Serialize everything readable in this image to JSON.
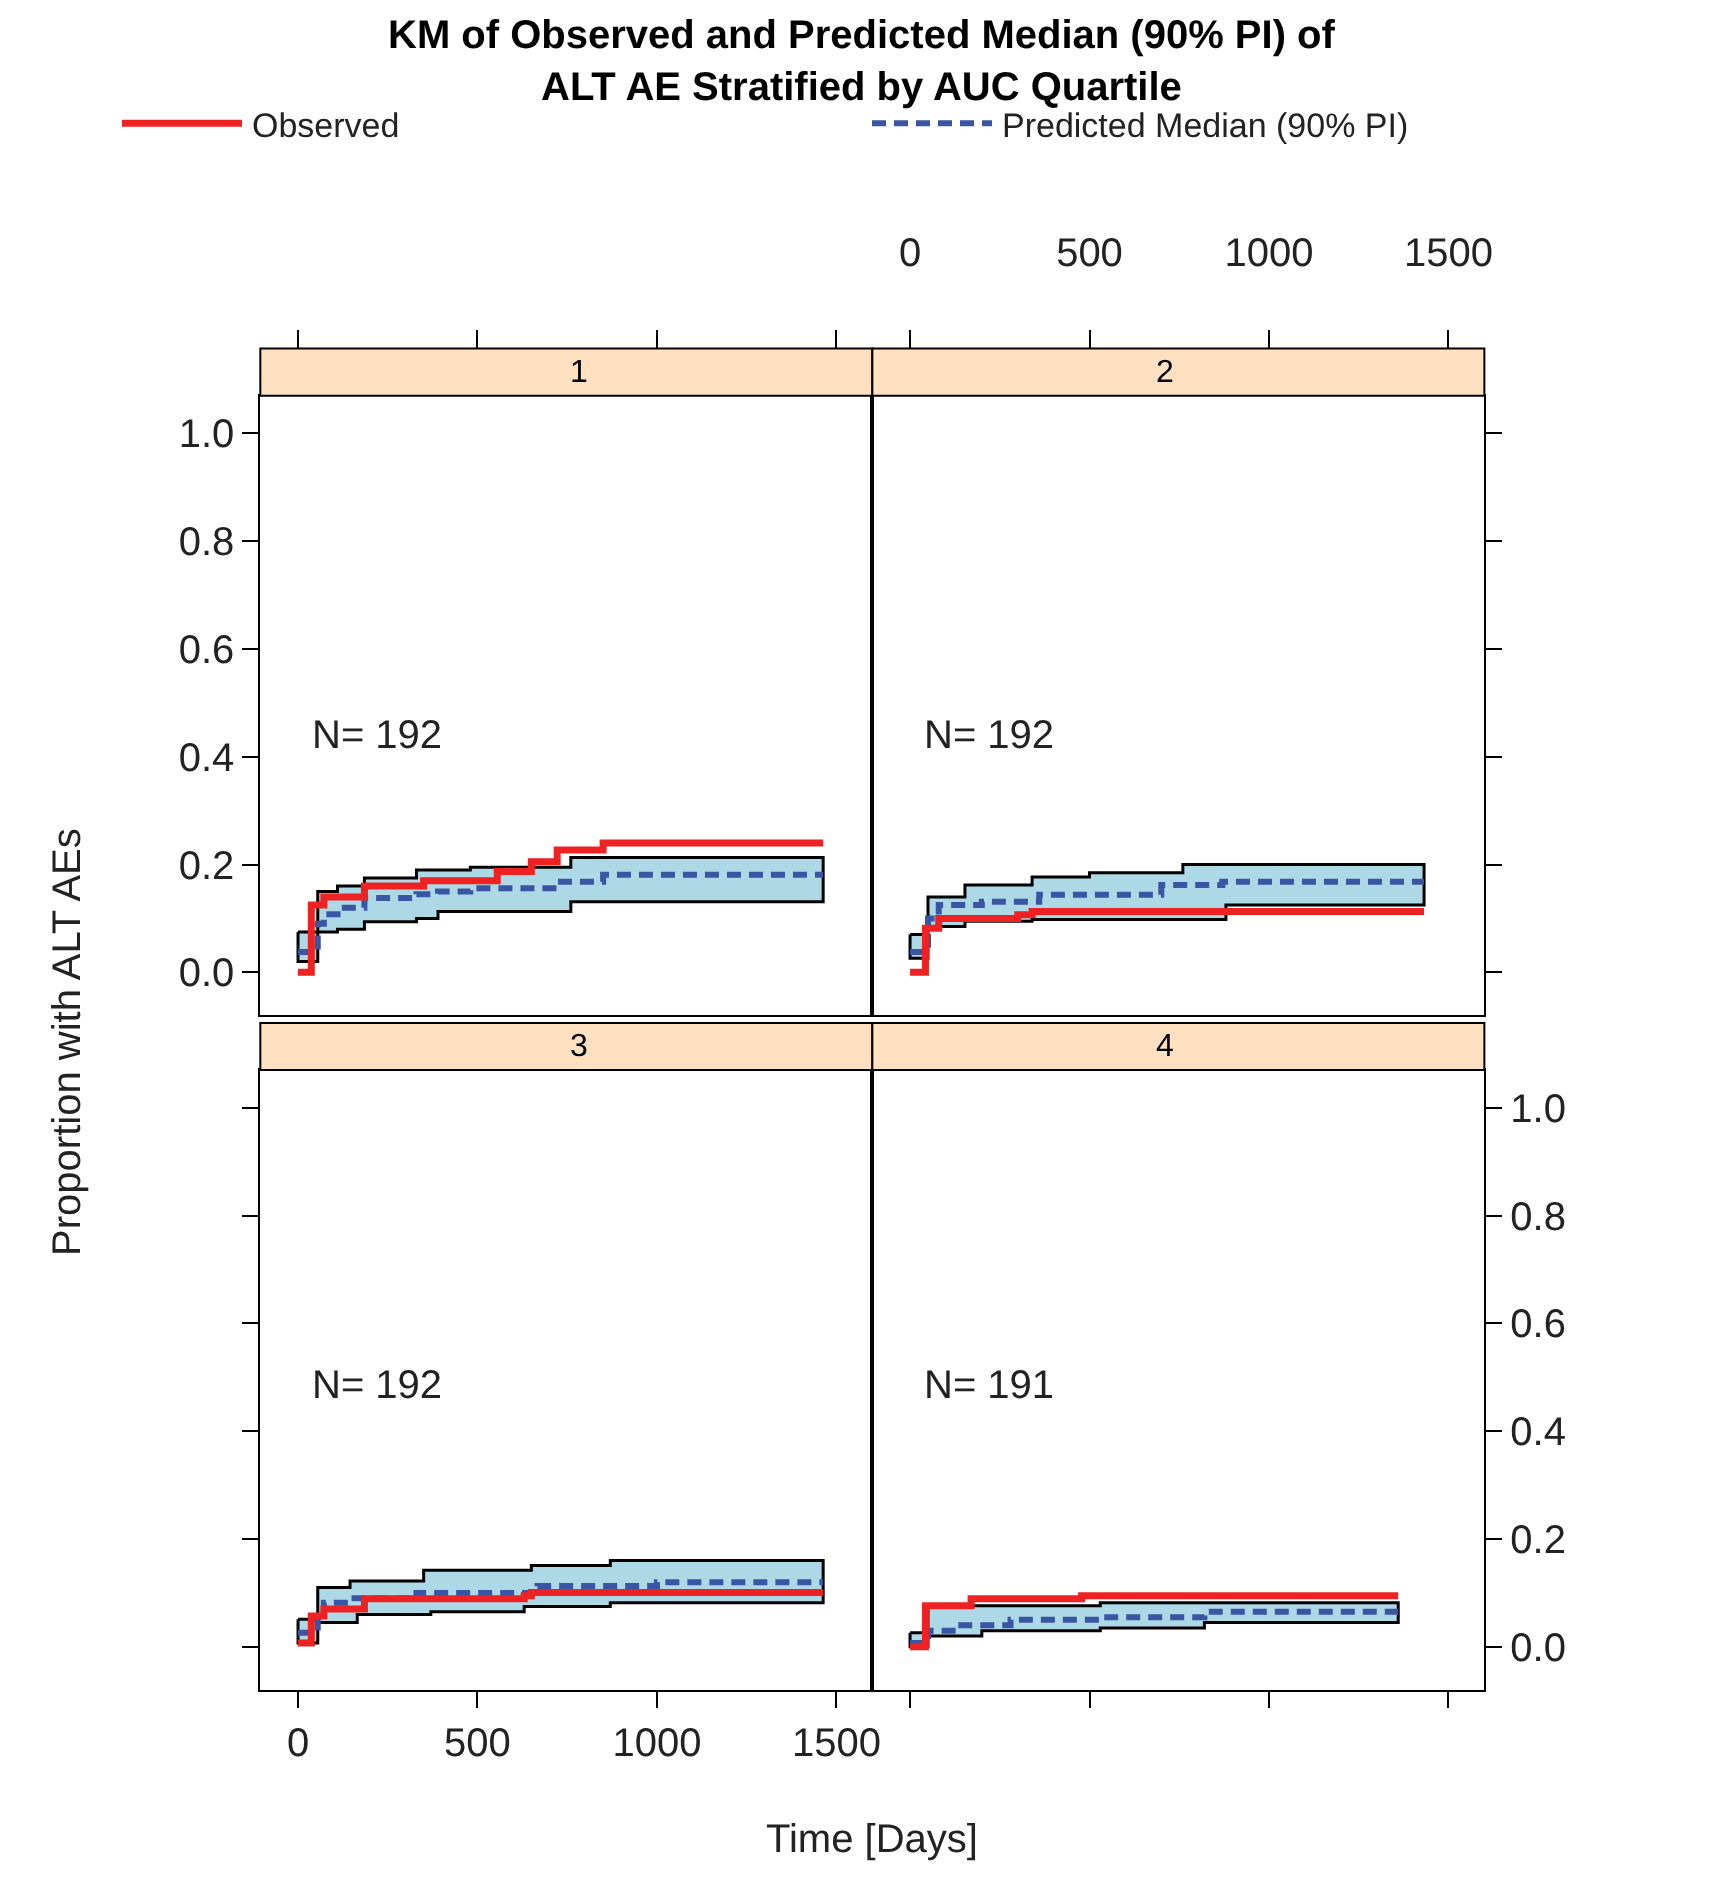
{
  "chart_data": [
    {
      "type": "step",
      "title": "KM of Observed and Predicted Median (90% PI) of\nALT AE Stratified by AUC Quartile",
      "subtitle": "1",
      "ylabel": "Proportion with ALT AEs",
      "legend": "top",
      "tick_labels": "y",
      "annotations": [
        "N= 192"
      ],
      "xlim": [
        -105,
        1600
      ],
      "xticks": [
        {
          "value": 0,
          "label": null
        },
        {
          "value": 500,
          "label": null
        },
        {
          "value": 1000,
          "label": null
        },
        {
          "value": 1500,
          "label": null
        }
      ],
      "ylim": [
        -0.08,
        1.07
      ],
      "yticks": [
        {
          "value": 0,
          "label": "0.0"
        },
        {
          "value": 0.2,
          "label": "0.2"
        },
        {
          "value": 0.4,
          "label": "0.4"
        },
        {
          "value": 0.6,
          "label": "0.6"
        },
        {
          "value": 0.8,
          "label": "0.8"
        },
        {
          "value": 1.0,
          "label": "1.0"
        }
      ],
      "series": [
        {
          "name": "Observed",
          "color": "#ee2222",
          "x": [
            0,
            37,
            72,
            185,
            350,
            555,
            650,
            722,
            850,
            1463
          ],
          "values": [
            0,
            0.125,
            0.14,
            0.16,
            0.17,
            0.187,
            0.205,
            0.227,
            0.24,
            0.24
          ]
        },
        {
          "name": "Predicted Median (90% PI)",
          "color": "#3a55a4",
          "line_style": "dashed",
          "x": [
            0,
            55,
            72,
            110,
            185,
            330,
            390,
            480,
            722,
            760,
            850,
            1463
          ],
          "values": [
            0.038,
            0.09,
            0.108,
            0.12,
            0.138,
            0.145,
            0.15,
            0.156,
            0.168,
            0.168,
            0.181,
            0.181
          ],
          "lower": [
            0.02,
            0.075,
            0.075,
            0.08,
            0.094,
            0.1,
            0.113,
            0.113,
            0.113,
            0.131,
            0.131,
            0.131
          ],
          "upper": [
            0.075,
            0.15,
            0.15,
            0.16,
            0.175,
            0.19,
            0.19,
            0.195,
            0.195,
            0.213,
            0.213,
            0.213
          ]
        }
      ]
    },
    {
      "type": "step",
      "subtitle": "2",
      "tick_labels": "x",
      "annotations": [
        "N= 192"
      ],
      "xlim": [
        -105,
        1600
      ],
      "xticks": [
        0,
        500,
        1000,
        1500
      ],
      "ylim": [
        -0.08,
        1.07
      ],
      "yticks": [
        {
          "value": 0,
          "label": null
        },
        {
          "value": 0.2,
          "label": null
        },
        {
          "value": 0.4,
          "label": null
        },
        {
          "value": 0.6,
          "label": null
        },
        {
          "value": 0.8,
          "label": null
        },
        {
          "value": 1.0,
          "label": null
        }
      ],
      "series": [
        {
          "color": "#ee2222",
          "x": [
            0,
            43,
            80,
            300,
            340,
            1432
          ],
          "values": [
            0,
            0.082,
            0.1,
            0.107,
            0.113,
            0.113
          ]
        },
        {
          "color": "#3a55a4",
          "line_style": "dashed",
          "x": [
            0,
            50,
            80,
            153,
            200,
            340,
            360,
            500,
            700,
            760,
            870,
            880,
            1432
          ],
          "values": [
            0.038,
            0.1,
            0.125,
            0.125,
            0.131,
            0.131,
            0.144,
            0.144,
            0.162,
            0.162,
            0.168,
            0.168,
            0.168
          ],
          "lower": [
            0.026,
            0.085,
            0.085,
            0.095,
            0.095,
            0.098,
            0.098,
            0.098,
            0.098,
            0.098,
            0.098,
            0.125,
            0.125
          ],
          "upper": [
            0.07,
            0.14,
            0.14,
            0.162,
            0.162,
            0.177,
            0.177,
            0.185,
            0.185,
            0.2,
            0.2,
            0.2,
            0.2
          ]
        }
      ]
    },
    {
      "type": "step",
      "subtitle": "3",
      "xlabel": "Time [Days]",
      "tick_labels": "x",
      "annotations": [
        "N= 192"
      ],
      "xlim": [
        -105,
        1600
      ],
      "xticks": [
        0,
        500,
        1000,
        1500
      ],
      "ylim": [
        -0.08,
        1.07
      ],
      "yticks": [
        {
          "value": 0,
          "label": null
        },
        {
          "value": 0.2,
          "label": null
        },
        {
          "value": 0.4,
          "label": null
        },
        {
          "value": 0.6,
          "label": null
        },
        {
          "value": 0.8,
          "label": null
        },
        {
          "value": 1.0,
          "label": null
        }
      ],
      "series": [
        {
          "color": "#ee2222",
          "x": [
            0,
            37,
            72,
            185,
            630,
            650,
            1463
          ],
          "values": [
            0.007,
            0.057,
            0.07,
            0.089,
            0.095,
            0.101,
            0.101
          ]
        },
        {
          "color": "#3a55a4",
          "line_style": "dashed",
          "x": [
            0,
            55,
            72,
            145,
            165,
            330,
            350,
            370,
            630,
            650,
            667,
            870,
            1000,
            1463
          ],
          "values": [
            0.026,
            0.06,
            0.082,
            0.09,
            0.09,
            0.1,
            0.1,
            0.1,
            0.1,
            0.1,
            0.113,
            0.113,
            0.12,
            0.12
          ],
          "lower": [
            0.007,
            0.045,
            0.045,
            0.045,
            0.06,
            0.06,
            0.06,
            0.065,
            0.075,
            0.075,
            0.075,
            0.082,
            0.082,
            0.082
          ],
          "upper": [
            0.051,
            0.11,
            0.11,
            0.122,
            0.122,
            0.122,
            0.142,
            0.142,
            0.142,
            0.151,
            0.151,
            0.16,
            0.16,
            0.16
          ]
        }
      ]
    },
    {
      "type": "step",
      "subtitle": "4",
      "tick_labels": "y",
      "annotations": [
        "N= 191"
      ],
      "xlim": [
        -105,
        1600
      ],
      "xticks": [
        {
          "value": 0,
          "label": null
        },
        {
          "value": 500,
          "label": null
        },
        {
          "value": 1000,
          "label": null
        },
        {
          "value": 1500,
          "label": null
        }
      ],
      "ylim": [
        -0.08,
        1.07
      ],
      "yticks": [
        {
          "value": 0,
          "label": "0.0"
        },
        {
          "value": 0.2,
          "label": "0.2"
        },
        {
          "value": 0.4,
          "label": "0.4"
        },
        {
          "value": 0.6,
          "label": "0.6"
        },
        {
          "value": 0.8,
          "label": "0.8"
        },
        {
          "value": 1.0,
          "label": "1.0"
        }
      ],
      "series": [
        {
          "color": "#ee2222",
          "x": [
            0,
            43,
            170,
            478,
            1360
          ],
          "values": [
            0,
            0.076,
            0.089,
            0.095,
            0.095
          ]
        },
        {
          "color": "#3a55a4",
          "line_style": "dashed",
          "x": [
            0,
            50,
            130,
            200,
            280,
            530,
            820,
            1360
          ],
          "values": [
            0.007,
            0.03,
            0.04,
            0.04,
            0.05,
            0.055,
            0.065,
            0.065
          ],
          "lower": [
            0,
            0.02,
            0.02,
            0.03,
            0.03,
            0.035,
            0.045,
            0.045
          ],
          "upper": [
            0.026,
            0.076,
            0.076,
            0.076,
            0.076,
            0.082,
            0.082,
            0.082
          ]
        }
      ]
    }
  ]
}
